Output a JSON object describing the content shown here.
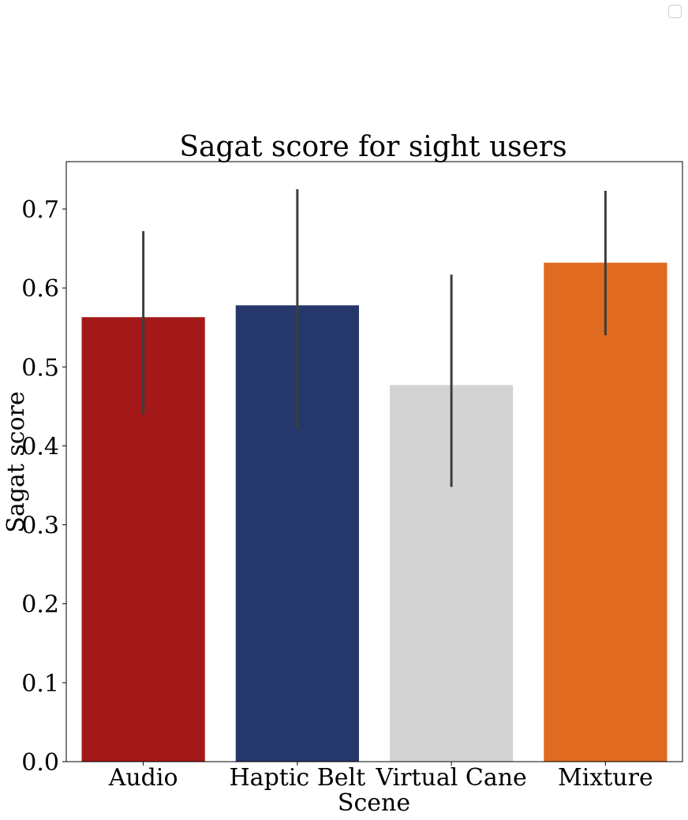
{
  "chart_data": {
    "type": "bar",
    "title": "Sagat score for sight users",
    "xlabel": "Scene",
    "ylabel": "Sagat score",
    "categories": [
      "Audio",
      "Haptic Belt",
      "Virtual Cane",
      "Mixture"
    ],
    "values": [
      0.563,
      0.578,
      0.477,
      0.632
    ],
    "error_low": [
      0.44,
      0.422,
      0.348,
      0.54
    ],
    "error_high": [
      0.672,
      0.725,
      0.617,
      0.723
    ],
    "colors": [
      "#a31818",
      "#26386b",
      "#d3d3d3",
      "#df6a20"
    ],
    "error_color": "#3d3d3d",
    "ylim": [
      0,
      0.76
    ],
    "yticks": [
      "0.0",
      "0.1",
      "0.2",
      "0.3",
      "0.4",
      "0.5",
      "0.6",
      "0.7"
    ],
    "grid": false,
    "legend": "top-right (empty)"
  }
}
